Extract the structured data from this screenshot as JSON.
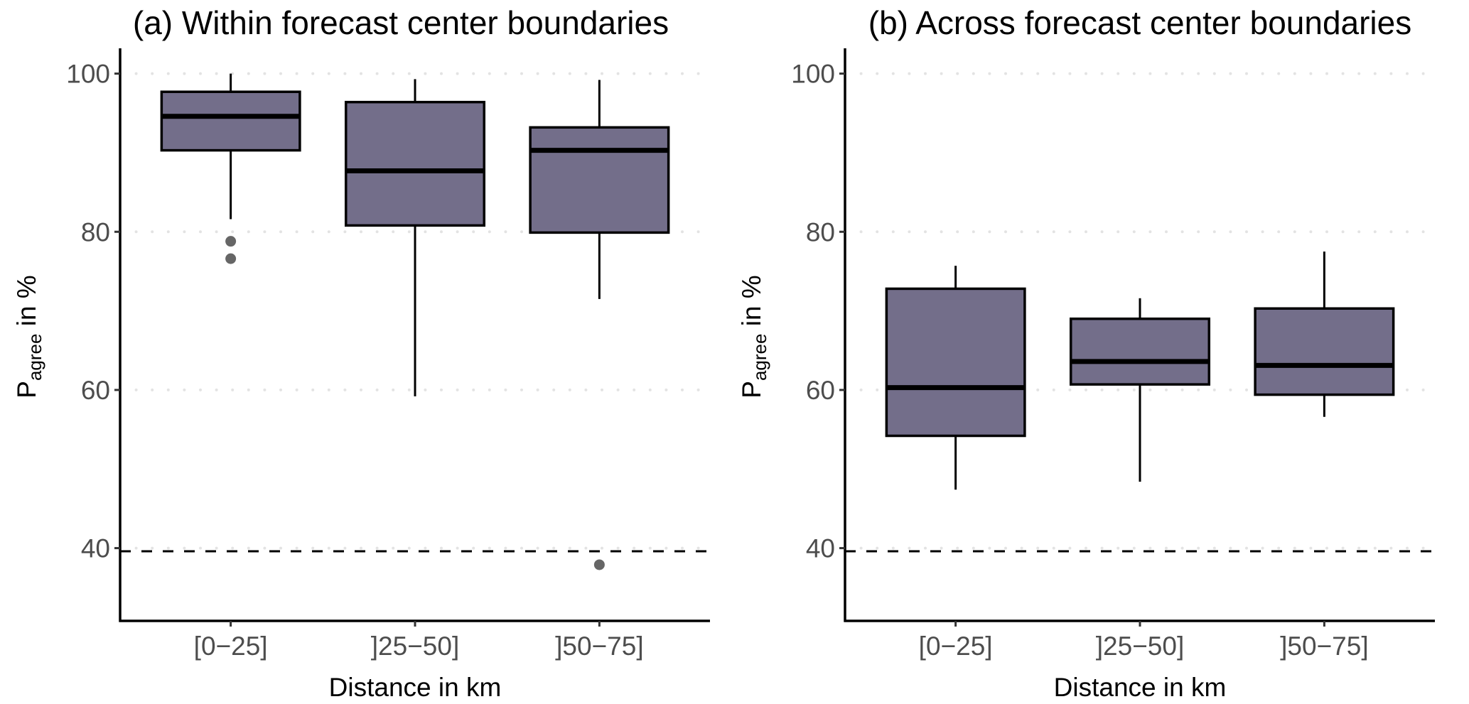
{
  "chart_data": [
    {
      "type": "box",
      "title": "(a) Within forecast center boundaries",
      "xlabel": "Distance in km",
      "ylabel": {
        "main": "P",
        "subscript": "agree",
        "suffix": " in %"
      },
      "ylim": [
        30.8,
        103.2
      ],
      "yticks": [
        40,
        60,
        80,
        100
      ],
      "grid": "horizontal-dotted",
      "reference_line": {
        "value": 39.6,
        "style": "dashed"
      },
      "categories": [
        "[0−25]",
        "]25−50]",
        "]50−75]"
      ],
      "boxes": [
        {
          "category": "[0−25]",
          "whisker_low": 81.6,
          "q1": 90.3,
          "median": 94.6,
          "q3": 97.7,
          "whisker_high": 100.0,
          "outliers": [
            78.8,
            76.6
          ]
        },
        {
          "category": "]25−50]",
          "whisker_low": 59.2,
          "q1": 80.8,
          "median": 87.7,
          "q3": 96.4,
          "whisker_high": 99.3,
          "outliers": []
        },
        {
          "category": "]50−75]",
          "whisker_low": 71.5,
          "q1": 79.9,
          "median": 90.3,
          "q3": 93.2,
          "whisker_high": 99.2,
          "outliers": [
            37.9
          ]
        }
      ]
    },
    {
      "type": "box",
      "title": "(b) Across forecast center boundaries",
      "xlabel": "Distance in km",
      "ylabel": {
        "main": "P",
        "subscript": "agree",
        "suffix": " in %"
      },
      "ylim": [
        30.8,
        103.2
      ],
      "yticks": [
        40,
        60,
        80,
        100
      ],
      "grid": "horizontal-dotted",
      "reference_line": {
        "value": 39.6,
        "style": "dashed"
      },
      "categories": [
        "[0−25]",
        "]25−50]",
        "]50−75]"
      ],
      "boxes": [
        {
          "category": "[0−25]",
          "whisker_low": 47.4,
          "q1": 54.2,
          "median": 60.3,
          "q3": 72.8,
          "whisker_high": 75.7,
          "outliers": []
        },
        {
          "category": "]25−50]",
          "whisker_low": 48.4,
          "q1": 60.7,
          "median": 63.6,
          "q3": 69.0,
          "whisker_high": 71.6,
          "outliers": []
        },
        {
          "category": "]50−75]",
          "whisker_low": 56.6,
          "q1": 59.4,
          "median": 63.1,
          "q3": 70.3,
          "whisker_high": 77.5,
          "outliers": []
        }
      ]
    }
  ],
  "colors": {
    "box_fill": "#736e8a",
    "box_stroke": "#000000",
    "outlier": "#666666",
    "grid": "#e3e3e3",
    "reference_line": "#000000",
    "tick_text": "#4d4d4d"
  }
}
